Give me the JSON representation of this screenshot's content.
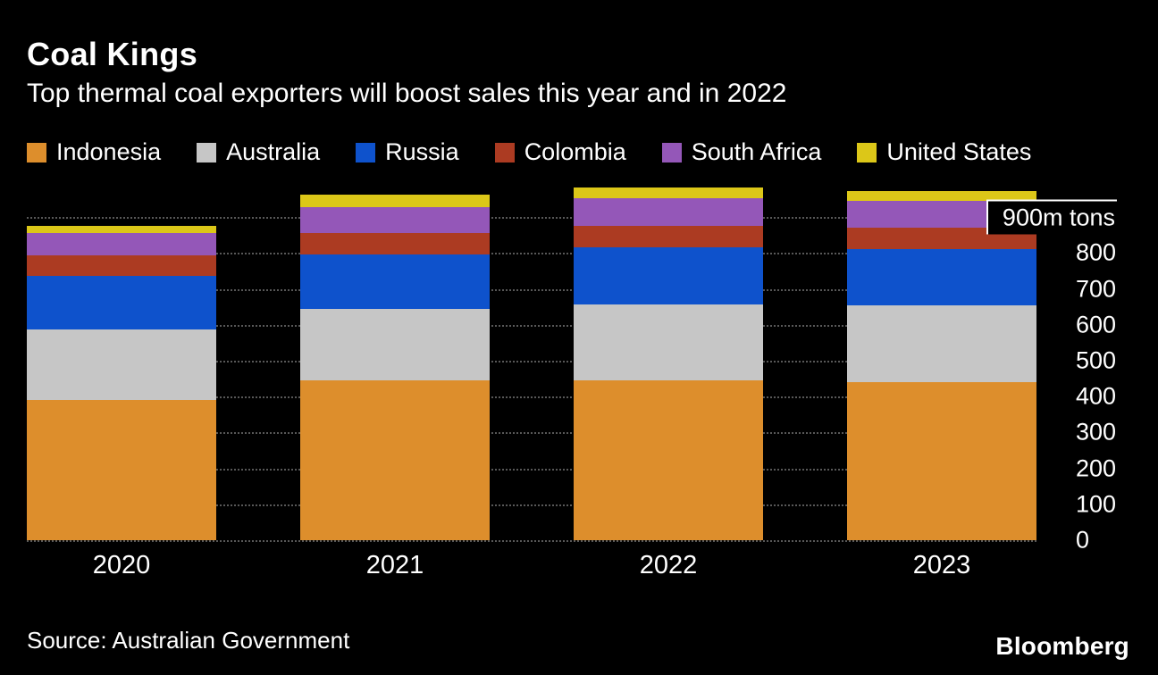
{
  "header": {
    "title": "Coal Kings",
    "subtitle": "Top thermal coal exporters will boost sales this year and in 2022"
  },
  "chart_data": {
    "type": "bar",
    "stacked": true,
    "title": "Coal Kings",
    "subtitle": "Top thermal coal exporters will boost sales this year and in 2022",
    "unit": "m tons",
    "background": "#000000",
    "grid": "horizontal-dotted",
    "legend_position": "top",
    "categories": [
      "2020",
      "2021",
      "2022",
      "2023"
    ],
    "series": [
      {
        "name": "Indonesia",
        "color": "#DD8E2C",
        "values": [
          390,
          445,
          445,
          440
        ]
      },
      {
        "name": "Australia",
        "color": "#C6C6C6",
        "values": [
          198,
          200,
          212,
          214
        ]
      },
      {
        "name": "Russia",
        "color": "#0E52CC",
        "values": [
          148,
          150,
          158,
          158
        ]
      },
      {
        "name": "Colombia",
        "color": "#AC3B22",
        "values": [
          58,
          60,
          62,
          58
        ]
      },
      {
        "name": "South Africa",
        "color": "#9457B8",
        "values": [
          62,
          72,
          76,
          75
        ]
      },
      {
        "name": "United States",
        "color": "#DCC718",
        "values": [
          20,
          35,
          30,
          28
        ]
      }
    ],
    "ylim": [
      0,
      1010
    ],
    "yticks": [
      {
        "value": 900,
        "label": "900m tons",
        "unit": true
      },
      {
        "value": 800,
        "label": "800"
      },
      {
        "value": 700,
        "label": "700"
      },
      {
        "value": 600,
        "label": "600"
      },
      {
        "value": 500,
        "label": "500"
      },
      {
        "value": 400,
        "label": "400"
      },
      {
        "value": 300,
        "label": "300"
      },
      {
        "value": 200,
        "label": "200"
      },
      {
        "value": 100,
        "label": "100"
      },
      {
        "value": 0,
        "label": "0"
      }
    ]
  },
  "footer": {
    "source": "Source: Australian Government",
    "logo": "Bloomberg"
  }
}
